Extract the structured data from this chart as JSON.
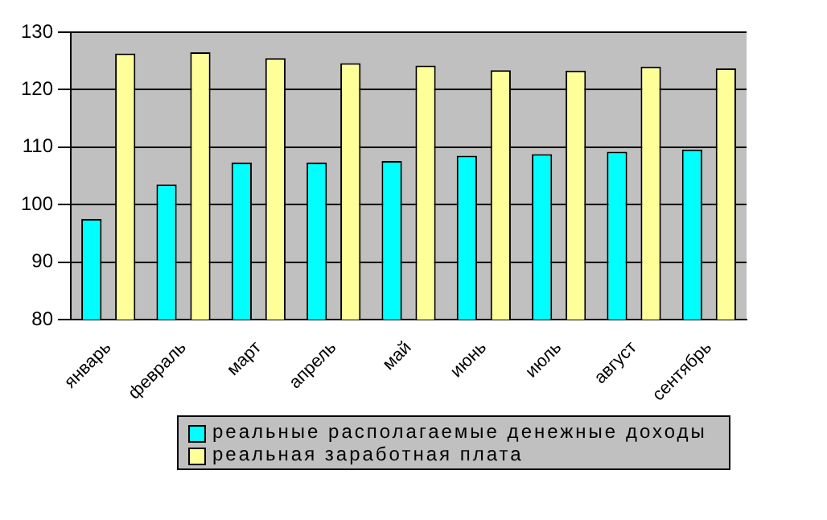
{
  "chart_data": {
    "type": "bar",
    "categories": [
      "январь",
      "февраль",
      "март",
      "апрель",
      "май",
      "июнь",
      "июль",
      "август",
      "сентябрь"
    ],
    "series": [
      {
        "name": "реальные располагаемые денежные доходы",
        "color": "#00ffff",
        "values": [
          97.5,
          103.5,
          107.3,
          107.3,
          107.6,
          108.5,
          108.8,
          109.2,
          109.6
        ]
      },
      {
        "name": "реальная заработная плата",
        "color": "#ffff99",
        "values": [
          126.3,
          126.5,
          125.5,
          124.6,
          124.2,
          123.4,
          123.3,
          124.0,
          123.7
        ]
      }
    ],
    "ylim": [
      80,
      130
    ],
    "yticks": [
      80,
      90,
      100,
      110,
      120,
      130
    ],
    "grid": "y",
    "legend": "bottom"
  }
}
